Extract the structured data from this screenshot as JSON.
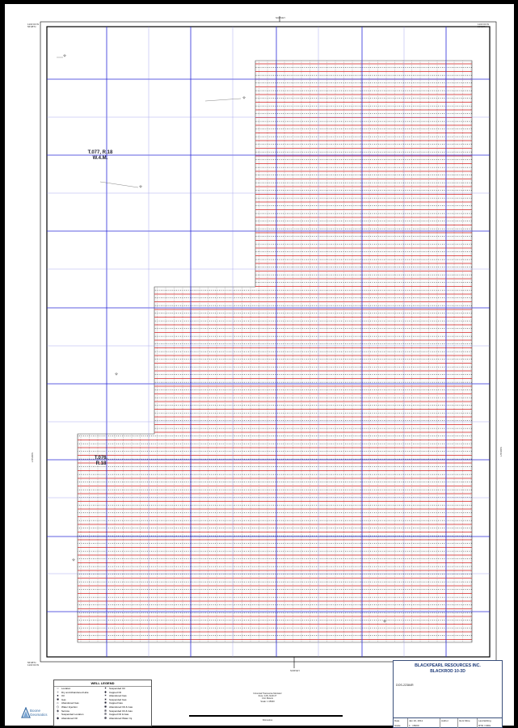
{
  "sheet": {
    "top_center_label": "SURVEY",
    "bottom_center_label": "SURVEY",
    "left_side_label": "SURVEY",
    "right_side_label": "SURVEY",
    "corner_top_left": "1101'00 W\n56'08\"N",
    "corner_top_right": "1101'00 W\n56'08\"N",
    "corner_bottom_left": "56'08\"N\n1101'00 W",
    "corner_bottom_right": "56'08\"N\n1101'00 W"
  },
  "map": {
    "township_label_1": "T.077, R.18\nW.4.M.",
    "township_label_2": "T.076, R.18",
    "source_line_color": "#d42020",
    "receiver_line_color": "#111111",
    "grid_color": "#2a2ad8",
    "minor_grid_color": "#8a8ae8"
  },
  "legend": {
    "title": "WELL LEGEND",
    "left_items": [
      {
        "icon": "location-icon",
        "symbol": "○",
        "label": "Location"
      },
      {
        "icon": "dry-abandoned-icon",
        "symbol": "✧",
        "label": "Dry and Abandoned Hole"
      },
      {
        "icon": "oil-icon",
        "symbol": "●",
        "label": "Oil"
      },
      {
        "icon": "gas-icon",
        "symbol": "✹",
        "label": "Gas"
      },
      {
        "icon": "abandoned-gas-icon",
        "symbol": "☼",
        "label": "Abandoned Gas"
      },
      {
        "icon": "water-injection-icon",
        "symbol": "◇",
        "label": "Water Injection"
      },
      {
        "icon": "service-icon",
        "symbol": "◈",
        "label": "Service"
      },
      {
        "icon": "suspended-location-icon",
        "symbol": "◌",
        "label": "Suspended Location"
      },
      {
        "icon": "abandoned-oil-icon",
        "symbol": "◆",
        "label": "Abandoned Oil"
      }
    ],
    "right_items": [
      {
        "icon": "suspended-oil-icon",
        "symbol": "✦",
        "label": "Suspended Oil"
      },
      {
        "icon": "capped-oil-icon",
        "symbol": "✚",
        "label": "Capped Oil"
      },
      {
        "icon": "abandoned-gas2-icon",
        "symbol": "✶",
        "label": "Abandoned Gas"
      },
      {
        "icon": "suspended-gas-icon",
        "symbol": "✷",
        "label": "Suspended Gas"
      },
      {
        "icon": "capped-gas-icon",
        "symbol": "✸",
        "label": "Capped Gas"
      },
      {
        "icon": "abandoned-oil-gas-icon",
        "symbol": "✺",
        "label": "Abandoned Oil & Gas"
      },
      {
        "icon": "suspended-oil-gas-icon",
        "symbol": "✻",
        "label": "Suspended Oil & Gas"
      },
      {
        "icon": "capped-oil-gas-icon",
        "symbol": "✼",
        "label": "Capped Oil & Gas"
      },
      {
        "icon": "abandoned-water-icon",
        "symbol": "✽",
        "label": "Abandoned Water Inj."
      }
    ]
  },
  "logo": {
    "line1": "Boone",
    "line2": "Geomatics"
  },
  "projection": {
    "line1": "Universal Transverse Mercator",
    "line2": "Zone: 12N, NAD 27",
    "line3": "Unit: Meters",
    "line4": "Scale: 1:15000"
  },
  "scale_label": "Kilometres",
  "title_block": {
    "company": "BLACKPEARL RESOURCES INC.",
    "project": "BLACKROD 10-3D",
    "drawing_no": "DOS-22384R",
    "date_label": "Date",
    "date_value": "Jan 10, 2011",
    "scale_label": "Scale",
    "scale_value": "1 : 15000",
    "author_label": "Author",
    "author_value": "GLG Mine",
    "last_edit_label": "Last Editing",
    "last_edit_value": "RTD / DRG"
  }
}
